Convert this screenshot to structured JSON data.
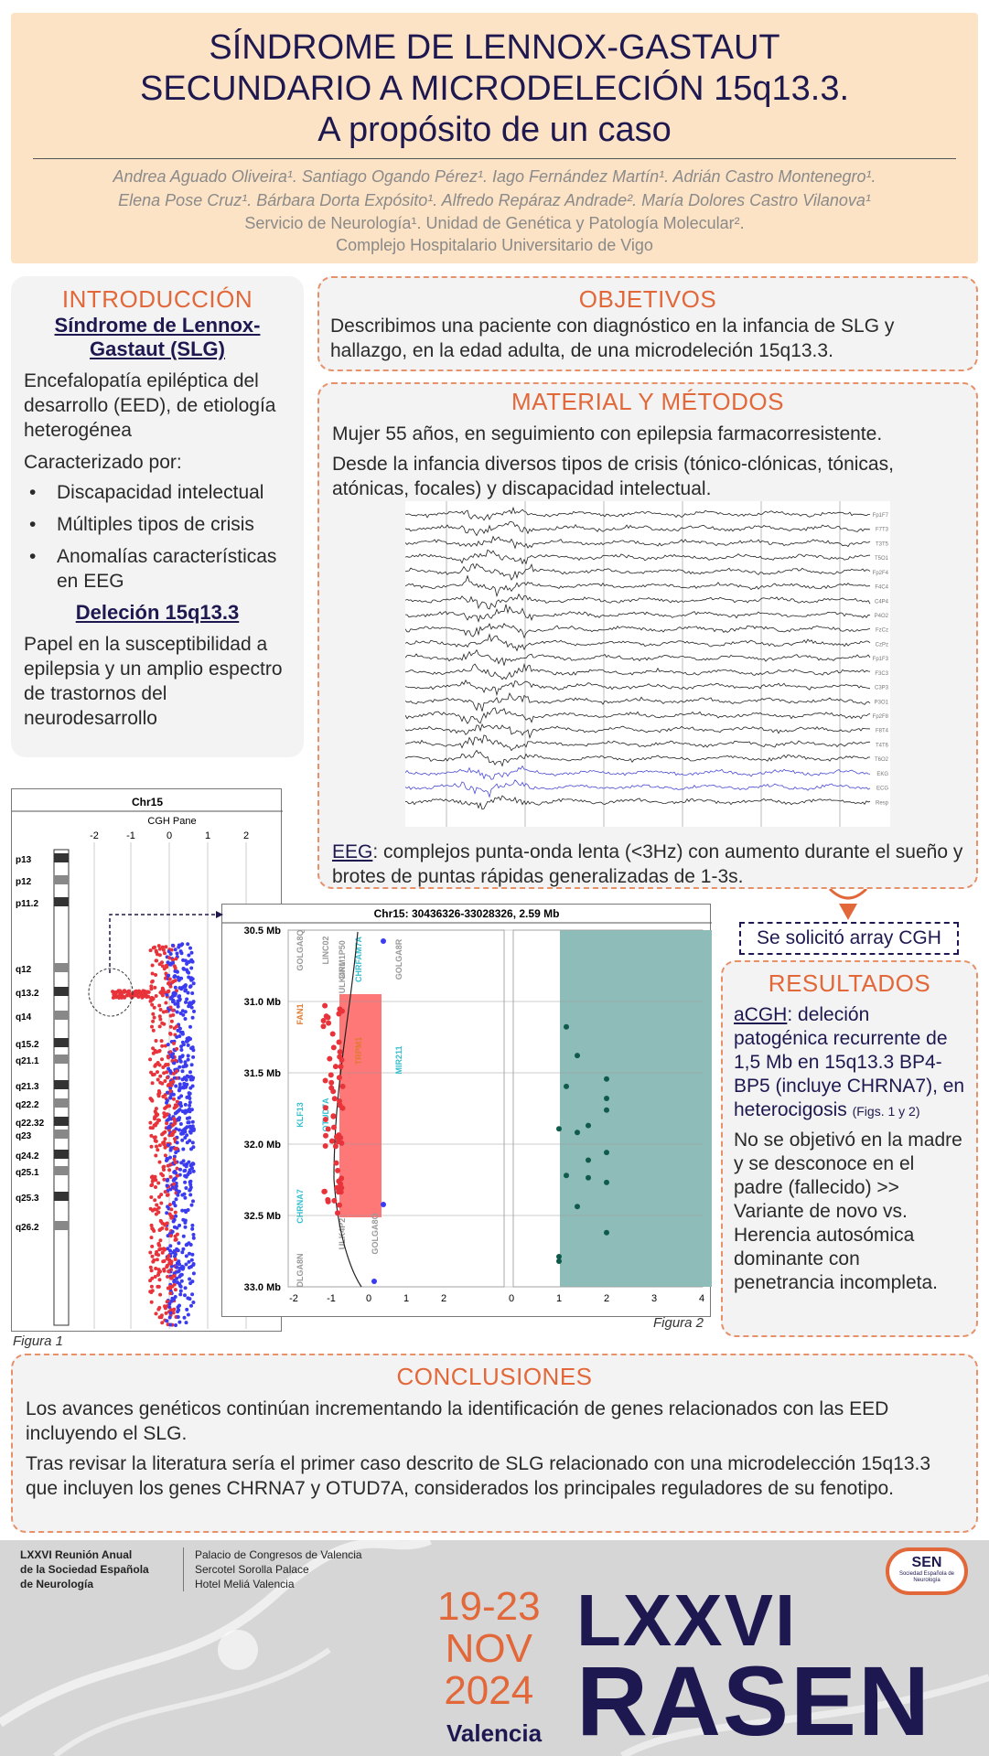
{
  "header": {
    "title_line1": "SÍNDROME DE LENNOX-GASTAUT",
    "title_line2": "SECUNDARIO A MICRODELECIÓN 15q13.3.",
    "title_line3": "A propósito de un caso",
    "authors_line1": "Andrea Aguado Oliveira¹. Santiago Ogando Pérez¹. Iago Fernández Martín¹. Adrián Castro Montenegro¹.",
    "authors_line2": "Elena Pose Cruz¹. Bárbara Dorta Expósito¹. Alfredo Repáraz Andrade². María Dolores Castro Vilanova¹",
    "affil_line1": "Servicio de Neurología¹. Unidad de Genética y Patología Molecular².",
    "affil_line2": "Complejo Hospitalario Universitario de Vigo"
  },
  "intro": {
    "title": "INTRODUCCIÓN",
    "subtitle1": "Síndrome de Lennox-Gastaut (SLG)",
    "p1": "Encefalopatía epiléptica del desarrollo (EED), de etiología heterogénea",
    "p2": "Caracterizado por:",
    "items": [
      "Discapacidad intelectual",
      "Múltiples tipos de crisis",
      "Anomalías características en EEG"
    ],
    "subtitle2": "Deleción 15q13.3",
    "p3": "Papel en la susceptibilidad a epilepsia y un amplio espectro de trastornos del neurodesarrollo"
  },
  "objetivos": {
    "title": "OBJETIVOS",
    "text": "Describimos una paciente con diagnóstico en la infancia de SLG y hallazgo, en la edad adulta, de una microdeleción 15q13.3."
  },
  "material": {
    "title": "MATERIAL Y MÉTODOS",
    "p1": "Mujer 55 años, en seguimiento con epilepsia farmacorresistente.",
    "p2": "Desde la infancia diversos tipos de crisis (tónico-clónicas, tónicas, atónicas, focales) y discapacidad intelectual.",
    "eeg_label": "EEG",
    "eeg_text": ": complejos punta-onda lenta (<3Hz) con aumento durante el sueño y brotes de puntas rápidas generalizadas de 1-3s.",
    "eeg_channels": [
      "Fp1F7",
      "F7T3",
      "T3T5",
      "T5O1",
      "Fp2F4",
      "F4C4",
      "C4P4",
      "P4O2",
      "FzCz",
      "CzPz",
      "Fp1F3",
      "F3C3",
      "C3P3",
      "P3O1",
      "Fp2F8",
      "F8T4",
      "T4T6",
      "T6O2",
      "EKG",
      "ECG",
      "Resp"
    ]
  },
  "cgh_box": "Se solicitó array CGH",
  "resultados": {
    "title": "RESULTADOS",
    "acgh_label": "aCGH",
    "acgh_text": ": deleción patogénica recurrente de 1,5 Mb en 15q13.3 BP4-BP5 (incluye CHRNA7), en heterocigosis",
    "figs_ref": "(Figs. 1 y 2)",
    "p2": "No se objetivó en la madre y se desconoce en el padre (fallecido) >> Variante de novo vs. Herencia autosómica dominante con penetrancia incompleta."
  },
  "conclusiones": {
    "title": "CONCLUSIONES",
    "p1": "Los avances genéticos continúan incrementando la identificación de genes relacionados con las EED incluyendo el SLG.",
    "p2": "Tras revisar la literatura sería el primer caso descrito de SLG relacionado con una microdelección 15q13.3 que incluyen los genes CHRNA7 y OTUD7A, considerados los principales reguladores de su fenotipo."
  },
  "figure1": {
    "caption": "Figura 1",
    "title": "Chr15",
    "pane": "CGH Pane",
    "x_ticks": [
      "-2",
      "-1",
      "0",
      "1",
      "2"
    ],
    "bands": [
      "p13",
      "p12",
      "p11.2",
      "q12",
      "q13.2",
      "q14",
      "q15.2",
      "q21.1",
      "q21.3",
      "q22.2",
      "q22.32",
      "q23",
      "q24.2",
      "q25.1",
      "q25.3",
      "q26.2"
    ]
  },
  "figure2": {
    "caption": "Figura 2",
    "title": "Chr15: 30436326-33028326, 2.59 Mb",
    "y_ticks": [
      "30.5 Mb",
      "31.0 Mb",
      "31.5 Mb",
      "32.0 Mb",
      "32.5 Mb",
      "33.0 Mb"
    ],
    "x_ticks_left": [
      "-2",
      "-1",
      "0",
      "1",
      "2"
    ],
    "x_ticks_right": [
      "0",
      "1",
      "2",
      "3",
      "4"
    ],
    "genes": [
      "FAN1",
      "KLF13",
      "CHRNA7",
      "TRPM1",
      "MIR211",
      "DNM1P50",
      "GOLGA8R",
      "GOLGA8Q",
      "LINC02",
      "ULK4P1",
      "ULK4P2",
      "GOLGA8O",
      "OTUD7A",
      "CHRFAM7A",
      "DLGA8N"
    ]
  },
  "footer": {
    "org_line1": "LXXVI Reunión Anual",
    "org_line2": "de la Sociedad Española",
    "org_line3": "de Neurología",
    "venue_line1": "Palacio de Congresos de Valencia",
    "venue_line2": "Sercotel Sorolla Palace",
    "venue_line3": "Hotel Meliá Valencia",
    "date_line1": "19-23",
    "date_line2": "NOV",
    "date_line3": "2024",
    "city": "Valencia",
    "big1": "LXXVI",
    "big2": "RASEN",
    "logo": "SEN",
    "logo_sub": "Sociedad Española de Neurología"
  },
  "colors": {
    "navy": "#1e1850",
    "orange": "#e2683a",
    "peach": "#fde3c5",
    "red": "#e8333b",
    "blue": "#3b3bef",
    "teal": "#8ebdb9"
  }
}
